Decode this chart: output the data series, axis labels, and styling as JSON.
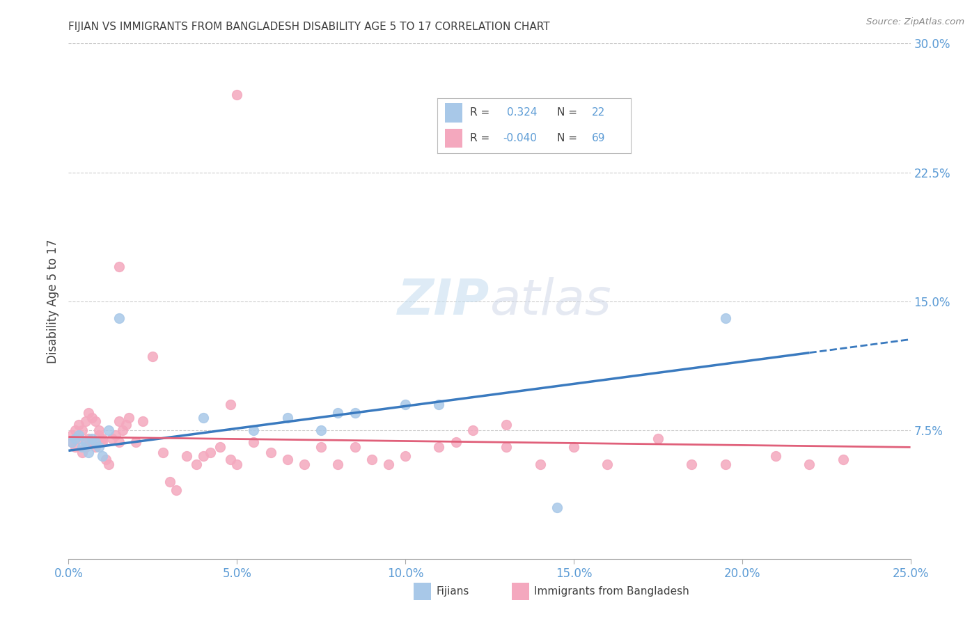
{
  "title": "FIJIAN VS IMMIGRANTS FROM BANGLADESH DISABILITY AGE 5 TO 17 CORRELATION CHART",
  "source": "Source: ZipAtlas.com",
  "ylabel_left": "Disability Age 5 to 17",
  "legend_label1": "Fijians",
  "legend_label2": "Immigrants from Bangladesh",
  "R1": "0.324",
  "N1": "22",
  "R2": "-0.040",
  "N2": "69",
  "color_blue": "#a8c8e8",
  "color_pink": "#f4a8be",
  "trendline_blue": "#3a7abf",
  "trendline_pink": "#e0607a",
  "title_color": "#404040",
  "axis_color": "#5b9bd5",
  "text_color": "#404040",
  "grid_color": "#cccccc",
  "xlim": [
    0.0,
    0.25
  ],
  "ylim": [
    0.0,
    0.3
  ],
  "fijian_x": [
    0.001,
    0.002,
    0.003,
    0.004,
    0.005,
    0.006,
    0.007,
    0.008,
    0.009,
    0.01,
    0.012,
    0.015,
    0.04,
    0.055,
    0.065,
    0.075,
    0.08,
    0.085,
    0.1,
    0.11,
    0.145,
    0.195
  ],
  "fijian_y": [
    0.068,
    0.07,
    0.072,
    0.065,
    0.068,
    0.062,
    0.07,
    0.068,
    0.065,
    0.06,
    0.075,
    0.14,
    0.082,
    0.075,
    0.082,
    0.075,
    0.085,
    0.085,
    0.09,
    0.09,
    0.03,
    0.14
  ],
  "bangladesh_x": [
    0.001,
    0.001,
    0.002,
    0.002,
    0.003,
    0.003,
    0.004,
    0.004,
    0.005,
    0.005,
    0.006,
    0.006,
    0.007,
    0.007,
    0.008,
    0.008,
    0.009,
    0.009,
    0.01,
    0.01,
    0.011,
    0.012,
    0.013,
    0.014,
    0.015,
    0.015,
    0.016,
    0.017,
    0.018,
    0.02,
    0.022,
    0.025,
    0.028,
    0.03,
    0.032,
    0.035,
    0.038,
    0.04,
    0.042,
    0.045,
    0.048,
    0.05,
    0.05,
    0.055,
    0.06,
    0.065,
    0.07,
    0.075,
    0.08,
    0.085,
    0.09,
    0.095,
    0.1,
    0.11,
    0.115,
    0.12,
    0.13,
    0.14,
    0.15,
    0.16,
    0.175,
    0.185,
    0.195,
    0.21,
    0.22,
    0.23,
    0.015,
    0.048,
    0.13
  ],
  "bangladesh_y": [
    0.068,
    0.072,
    0.065,
    0.075,
    0.07,
    0.078,
    0.062,
    0.075,
    0.065,
    0.08,
    0.07,
    0.085,
    0.068,
    0.082,
    0.065,
    0.08,
    0.072,
    0.075,
    0.068,
    0.07,
    0.058,
    0.055,
    0.07,
    0.072,
    0.068,
    0.08,
    0.075,
    0.078,
    0.082,
    0.068,
    0.08,
    0.118,
    0.062,
    0.045,
    0.04,
    0.06,
    0.055,
    0.06,
    0.062,
    0.065,
    0.058,
    0.055,
    0.27,
    0.068,
    0.062,
    0.058,
    0.055,
    0.065,
    0.055,
    0.065,
    0.058,
    0.055,
    0.06,
    0.065,
    0.068,
    0.075,
    0.065,
    0.055,
    0.065,
    0.055,
    0.07,
    0.055,
    0.055,
    0.06,
    0.055,
    0.058,
    0.17,
    0.09,
    0.078
  ]
}
